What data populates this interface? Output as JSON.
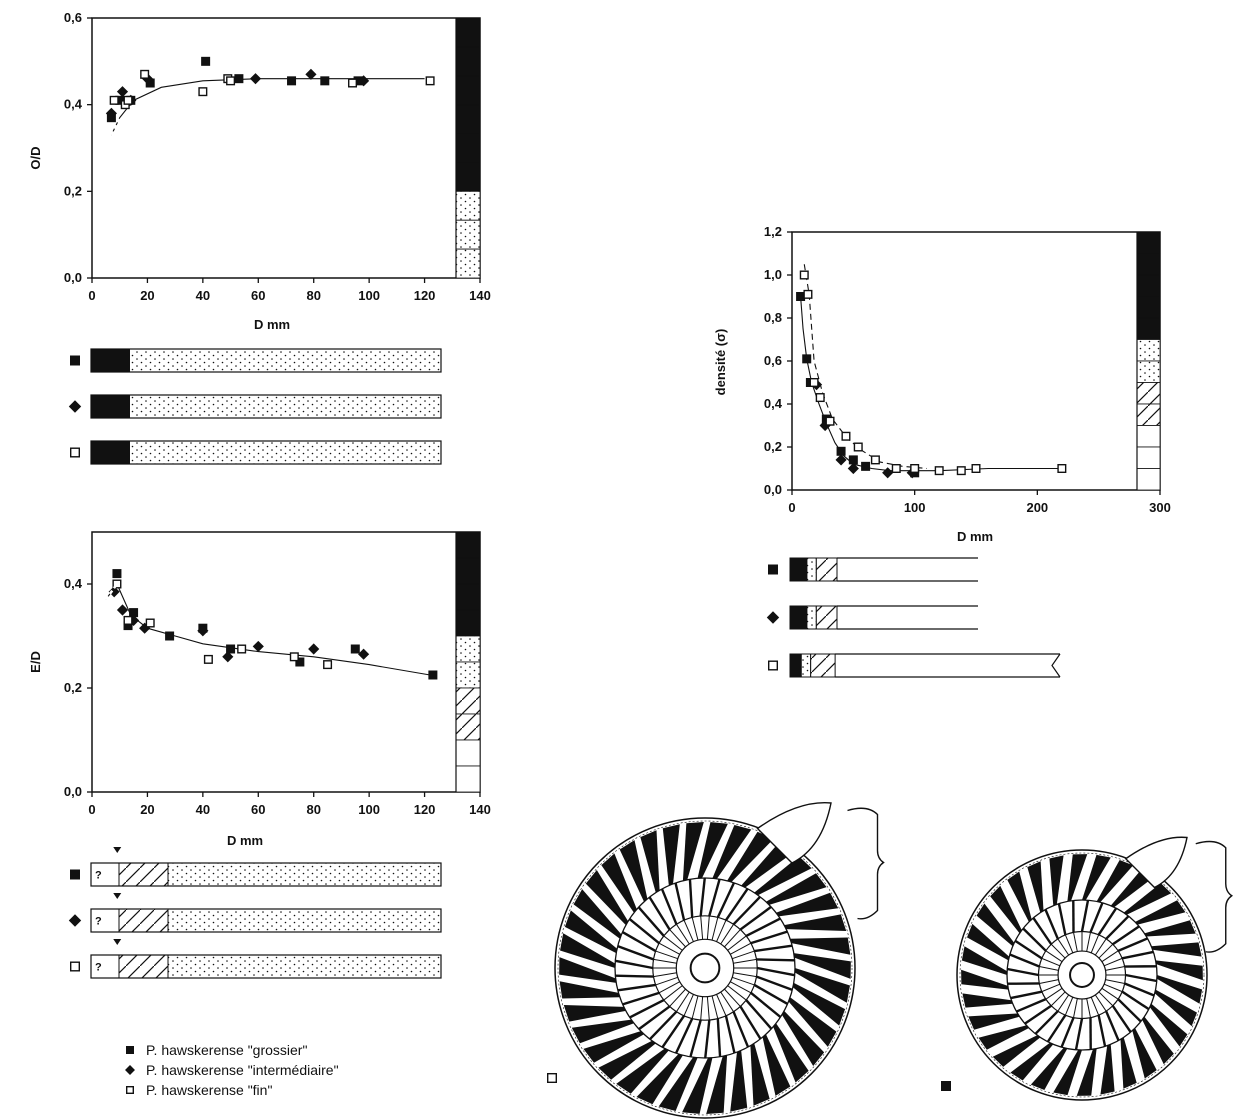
{
  "chart_data": [
    {
      "type": "scatter",
      "xlabel": "D mm",
      "ylabel": "O/D",
      "xlim": [
        0,
        140
      ],
      "ylim": [
        0,
        0.6
      ],
      "xticks": [
        "0",
        "20",
        "40",
        "60",
        "80",
        "100",
        "120",
        "140"
      ],
      "yticks": [
        "0,0",
        "0,2",
        "0,4",
        "0,6"
      ],
      "series": [
        {
          "name": "P. hawskerense \"grossier\"",
          "marker": "square-filled",
          "points": [
            [
              7,
              0.37
            ],
            [
              10,
              0.41
            ],
            [
              14,
              0.41
            ],
            [
              21,
              0.45
            ],
            [
              41,
              0.5
            ],
            [
              53,
              0.46
            ],
            [
              72,
              0.455
            ],
            [
              84,
              0.455
            ],
            [
              96,
              0.455
            ]
          ]
        },
        {
          "name": "P. hawskerense \"intermédiaire\"",
          "marker": "diamond",
          "points": [
            [
              7,
              0.38
            ],
            [
              11,
              0.43
            ],
            [
              14,
              0.41
            ],
            [
              20,
              0.46
            ],
            [
              59,
              0.46
            ],
            [
              79,
              0.47
            ],
            [
              98,
              0.455
            ]
          ]
        },
        {
          "name": "P. hawskerense \"fin\"",
          "marker": "square-open",
          "points": [
            [
              8,
              0.41
            ],
            [
              12,
              0.4
            ],
            [
              13,
              0.41
            ],
            [
              19,
              0.47
            ],
            [
              40,
              0.43
            ],
            [
              49,
              0.46
            ],
            [
              50,
              0.455
            ],
            [
              94,
              0.45
            ],
            [
              122,
              0.455
            ]
          ]
        }
      ],
      "curve": [
        [
          7,
          0.33
        ],
        [
          10,
          0.37
        ],
        [
          15,
          0.41
        ],
        [
          25,
          0.44
        ],
        [
          40,
          0.455
        ],
        [
          60,
          0.46
        ],
        [
          100,
          0.46
        ],
        [
          120,
          0.46
        ]
      ],
      "curve_style": "dash-then-solid",
      "band": [
        "black",
        "black",
        "black",
        "black",
        "black",
        "black",
        "dots",
        "dots",
        "dots"
      ]
    },
    {
      "type": "scatter",
      "xlabel": "D mm",
      "ylabel": "E/D",
      "xlim": [
        0,
        140
      ],
      "ylim": [
        0,
        0.5
      ],
      "xticks": [
        "0",
        "20",
        "40",
        "60",
        "80",
        "100",
        "120",
        "140"
      ],
      "yticks": [
        "0,0",
        "0,2",
        "0,4"
      ],
      "series": [
        {
          "name": "P. hawskerense \"grossier\"",
          "marker": "square-filled",
          "points": [
            [
              9,
              0.42
            ],
            [
              13,
              0.32
            ],
            [
              15,
              0.345
            ],
            [
              28,
              0.3
            ],
            [
              40,
              0.315
            ],
            [
              50,
              0.275
            ],
            [
              75,
              0.25
            ],
            [
              95,
              0.275
            ],
            [
              123,
              0.225
            ]
          ]
        },
        {
          "name": "P. hawskerense \"intermédiaire\"",
          "marker": "diamond",
          "points": [
            [
              8,
              0.385
            ],
            [
              11,
              0.35
            ],
            [
              15,
              0.33
            ],
            [
              19,
              0.315
            ],
            [
              40,
              0.31
            ],
            [
              49,
              0.26
            ],
            [
              60,
              0.28
            ],
            [
              80,
              0.275
            ],
            [
              98,
              0.265
            ]
          ]
        },
        {
          "name": "P. hawskerense \"fin\"",
          "marker": "square-open",
          "points": [
            [
              9,
              0.4
            ],
            [
              13,
              0.33
            ],
            [
              21,
              0.325
            ],
            [
              42,
              0.255
            ],
            [
              54,
              0.275
            ],
            [
              73,
              0.26
            ],
            [
              85,
              0.245
            ]
          ]
        }
      ],
      "curve": [
        [
          5,
          0.37
        ],
        [
          9,
          0.4
        ],
        [
          14,
          0.34
        ],
        [
          20,
          0.315
        ],
        [
          30,
          0.3
        ],
        [
          40,
          0.285
        ],
        [
          60,
          0.27
        ],
        [
          80,
          0.26
        ],
        [
          100,
          0.245
        ],
        [
          122,
          0.225
        ]
      ],
      "curve_style": "dash-then-solid",
      "band": [
        "black",
        "black",
        "black",
        "black",
        "dots",
        "dots",
        "hatch",
        "hatch",
        "white",
        "white"
      ]
    },
    {
      "type": "scatter",
      "xlabel": "D mm",
      "ylabel": "densité (σ)",
      "xlim": [
        0,
        300
      ],
      "ylim": [
        0,
        1.2
      ],
      "xticks": [
        "0",
        "100",
        "200",
        "300"
      ],
      "yticks": [
        "0,0",
        "0,2",
        "0,4",
        "0,6",
        "0,8",
        "1,0",
        "1,2"
      ],
      "series": [
        {
          "name": "P. hawskerense \"grossier\"",
          "marker": "square-filled",
          "points": [
            [
              7,
              0.9
            ],
            [
              12,
              0.61
            ],
            [
              15,
              0.5
            ],
            [
              28,
              0.33
            ],
            [
              40,
              0.18
            ],
            [
              50,
              0.14
            ],
            [
              60,
              0.11
            ],
            [
              100,
              0.08
            ]
          ]
        },
        {
          "name": "P. hawskerense \"intermédiaire\"",
          "marker": "diamond",
          "points": [
            [
              20,
              0.49
            ],
            [
              27,
              0.3
            ],
            [
              40,
              0.14
            ],
            [
              50,
              0.1
            ],
            [
              78,
              0.08
            ],
            [
              98,
              0.08
            ]
          ]
        },
        {
          "name": "P. hawskerense \"fin\"",
          "marker": "square-open",
          "points": [
            [
              10,
              1.0
            ],
            [
              13,
              0.91
            ],
            [
              18,
              0.5
            ],
            [
              23,
              0.43
            ],
            [
              31,
              0.32
            ],
            [
              44,
              0.25
            ],
            [
              54,
              0.2
            ],
            [
              68,
              0.14
            ],
            [
              85,
              0.1
            ],
            [
              100,
              0.1
            ],
            [
              120,
              0.09
            ],
            [
              138,
              0.09
            ],
            [
              150,
              0.1
            ],
            [
              220,
              0.1
            ]
          ]
        }
      ],
      "curve_main": [
        [
          7,
          0.9
        ],
        [
          9,
          0.75
        ],
        [
          12,
          0.61
        ],
        [
          16,
          0.5
        ],
        [
          22,
          0.4
        ],
        [
          28,
          0.31
        ],
        [
          35,
          0.22
        ],
        [
          42,
          0.16
        ],
        [
          50,
          0.12
        ],
        [
          65,
          0.1
        ],
        [
          80,
          0.09
        ],
        [
          120,
          0.09
        ],
        [
          160,
          0.1
        ],
        [
          220,
          0.1
        ]
      ],
      "curve_upper": [
        [
          10,
          1.05
        ],
        [
          14,
          0.91
        ],
        [
          18,
          0.6
        ],
        [
          25,
          0.45
        ],
        [
          33,
          0.33
        ],
        [
          45,
          0.24
        ],
        [
          58,
          0.18
        ],
        [
          72,
          0.13
        ],
        [
          90,
          0.11
        ],
        [
          110,
          0.1
        ]
      ],
      "band": [
        "black",
        "black",
        "black",
        "black",
        "black",
        "dots",
        "dots",
        "hatch",
        "hatch",
        "white",
        "white",
        "white"
      ]
    }
  ],
  "ontogeny_bars": {
    "bars_od": [
      {
        "marker": "square-filled",
        "segments": [
          {
            "fill": "black",
            "to": 0.11
          },
          {
            "fill": "dots",
            "to": 1
          }
        ]
      },
      {
        "marker": "diamond",
        "segments": [
          {
            "fill": "black",
            "to": 0.11
          },
          {
            "fill": "dots",
            "to": 1
          }
        ]
      },
      {
        "marker": "square-open",
        "segments": [
          {
            "fill": "black",
            "to": 0.11
          },
          {
            "fill": "dots",
            "to": 1
          }
        ]
      }
    ],
    "bars_ed": [
      {
        "marker": "square-filled",
        "question": "?",
        "segments": [
          {
            "fill": "white",
            "to": 0.08
          },
          {
            "fill": "hatch",
            "to": 0.22
          },
          {
            "fill": "dots",
            "to": 1
          }
        ]
      },
      {
        "marker": "diamond",
        "question": "?",
        "segments": [
          {
            "fill": "white",
            "to": 0.08
          },
          {
            "fill": "hatch",
            "to": 0.22
          },
          {
            "fill": "dots",
            "to": 1
          }
        ]
      },
      {
        "marker": "square-open",
        "question": "?",
        "segments": [
          {
            "fill": "white",
            "to": 0.08
          },
          {
            "fill": "hatch",
            "to": 0.22
          },
          {
            "fill": "dots",
            "to": 1
          }
        ]
      }
    ],
    "bars_density": [
      {
        "marker": "square-filled",
        "segments": [
          {
            "fill": "black",
            "to": 0.09
          },
          {
            "fill": "dots",
            "to": 0.14
          },
          {
            "fill": "hatch",
            "to": 0.25
          },
          {
            "fill": "white",
            "to": 1
          }
        ]
      },
      {
        "marker": "diamond",
        "segments": [
          {
            "fill": "black",
            "to": 0.09
          },
          {
            "fill": "dots",
            "to": 0.14
          },
          {
            "fill": "hatch",
            "to": 0.25
          },
          {
            "fill": "white",
            "to": 1
          }
        ]
      },
      {
        "marker": "square-open",
        "segments": [
          {
            "fill": "black",
            "to": 0.06
          },
          {
            "fill": "dots",
            "to": 0.11
          },
          {
            "fill": "hatch",
            "to": 0.24
          },
          {
            "fill": "white",
            "to": 1
          }
        ]
      }
    ]
  },
  "legend": {
    "items": [
      {
        "marker": "square-filled",
        "label": "P. hawskerense \"grossier\""
      },
      {
        "marker": "diamond",
        "label": "P. hawskerense \"intermédiaire\""
      },
      {
        "marker": "square-open",
        "label": "P. hawskerense \"fin\""
      }
    ]
  },
  "ammonites": [
    {
      "marker": "square-open",
      "rib_count": 38
    },
    {
      "marker": "square-filled",
      "rib_count": 32
    }
  ],
  "colors": {
    "ink": "#111111",
    "paper": "#ffffff"
  }
}
